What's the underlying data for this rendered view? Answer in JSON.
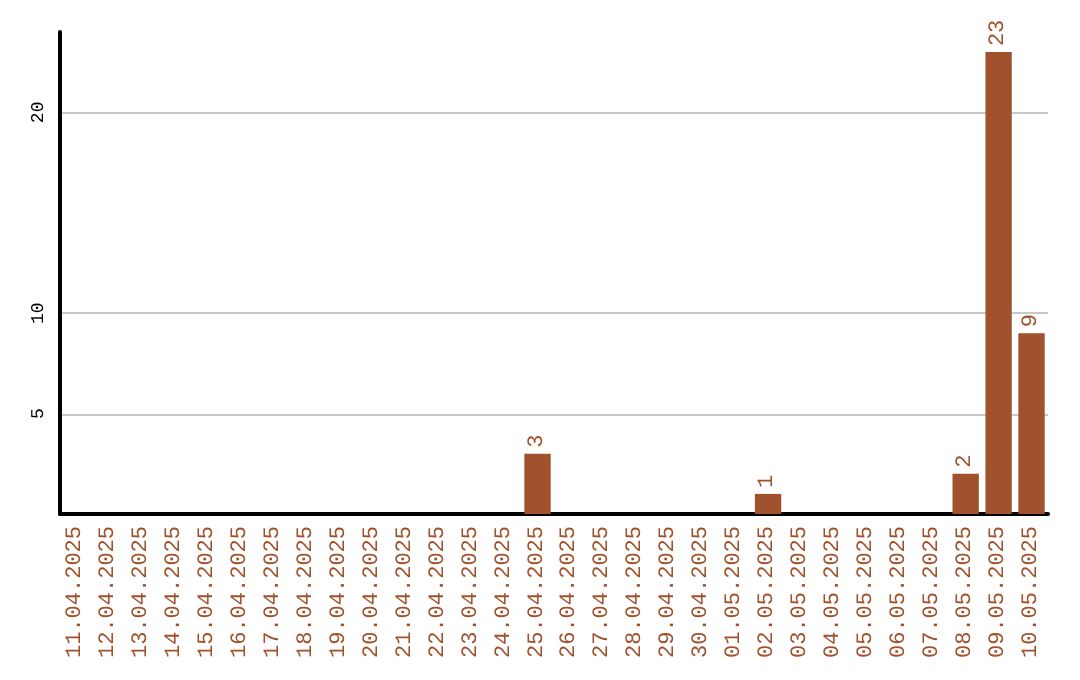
{
  "chart_data": {
    "type": "bar",
    "categories": [
      "11.04.2025",
      "12.04.2025",
      "13.04.2025",
      "14.04.2025",
      "15.04.2025",
      "16.04.2025",
      "17.04.2025",
      "18.04.2025",
      "19.04.2025",
      "20.04.2025",
      "21.04.2025",
      "22.04.2025",
      "23.04.2025",
      "24.04.2025",
      "25.04.2025",
      "26.04.2025",
      "27.04.2025",
      "28.04.2025",
      "29.04.2025",
      "30.04.2025",
      "01.05.2025",
      "02.05.2025",
      "03.05.2025",
      "04.05.2025",
      "05.05.2025",
      "06.05.2025",
      "07.05.2025",
      "08.05.2025",
      "09.05.2025",
      "10.05.2025"
    ],
    "values": [
      0,
      0,
      0,
      0,
      0,
      0,
      0,
      0,
      0,
      0,
      0,
      0,
      0,
      0,
      3,
      0,
      0,
      0,
      0,
      0,
      0,
      1,
      0,
      0,
      0,
      0,
      0,
      2,
      23,
      9
    ],
    "value_labels": [
      null,
      null,
      null,
      null,
      null,
      null,
      null,
      null,
      null,
      null,
      null,
      null,
      null,
      null,
      "3",
      null,
      null,
      null,
      null,
      null,
      null,
      "1",
      null,
      null,
      null,
      null,
      null,
      "2",
      "23",
      "9"
    ],
    "color": "#a0522d",
    "ylim": [
      0,
      24
    ],
    "yticks": [
      5,
      10,
      20
    ],
    "grid": "y"
  }
}
